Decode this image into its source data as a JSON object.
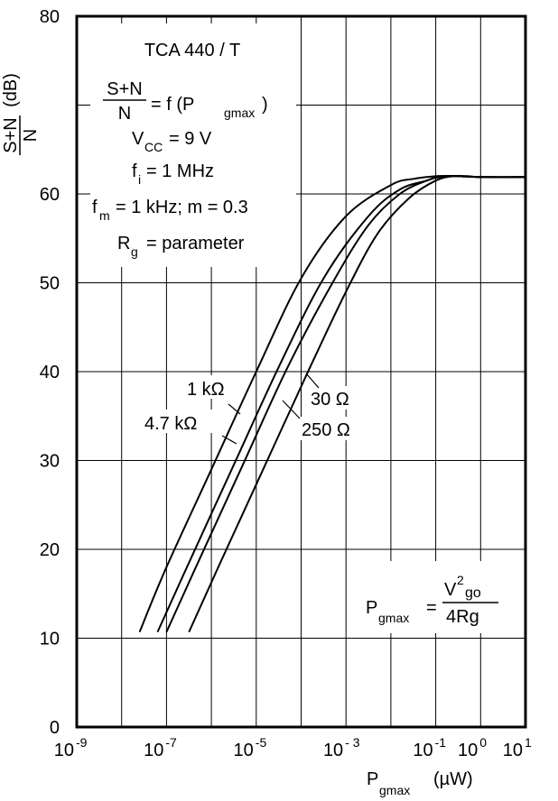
{
  "chart_data": {
    "type": "line",
    "x_scale": "log",
    "ylim": [
      0,
      80
    ],
    "xlim_exp": [
      -9,
      1
    ],
    "grid": true,
    "ylabel": {
      "num": "S+N",
      "den": "N",
      "unit": "(dB)"
    },
    "xlabel": {
      "main": "P",
      "sub": "gmax",
      "unit": "(µW)"
    },
    "y_ticks": [
      "0",
      "10",
      "20",
      "30",
      "40",
      "50",
      "60",
      "80"
    ],
    "x_ticks": [
      {
        "base": "10",
        "exp": "-9",
        "exp_value": -9
      },
      {
        "base": "10",
        "exp": "-7",
        "exp_value": -7
      },
      {
        "base": "10",
        "exp": "-5",
        "exp_value": -5
      },
      {
        "base": "10",
        "exp": "- 3",
        "exp_value": -3
      },
      {
        "base": "10",
        "exp": "-1",
        "exp_value": -1
      },
      {
        "base": "10",
        "exp": "0",
        "exp_value": 0
      },
      {
        "base": "10",
        "exp": "1",
        "exp_value": 1
      }
    ],
    "info_box": {
      "title": "TCA 440 / T",
      "formula": {
        "num": "S+N",
        "den": "N",
        "rest": "= f (P",
        "sub": "gmax",
        "close": ")"
      },
      "vcc": {
        "main": "V",
        "sub": "CC",
        "rest": "= 9 V"
      },
      "fi": {
        "main": "f",
        "sub": "i",
        "rest": "= 1 MHz"
      },
      "fm": {
        "main": "f",
        "sub": "m",
        "rest": "= 1 kHz; m = 0.3"
      },
      "rg": {
        "main": "R",
        "sub": "g",
        "rest": "= parameter"
      }
    },
    "pg_formula": {
      "lhs": "P",
      "lhs_sub": "gmax",
      "eq": "=",
      "num_main": "V",
      "num_sup": "2",
      "num_sub": "go",
      "den": "4Rg"
    },
    "series": [
      {
        "name": "1 kΩ",
        "x_exp": [
          -7.6,
          -7.0,
          -6.0,
          -5.0,
          -4.0,
          -3.0,
          -2.0,
          -1.5,
          -1.0,
          -0.8,
          -0.5,
          0.0,
          1.0
        ],
        "y": [
          10.7,
          18.0,
          29.0,
          40.0,
          50.5,
          57.5,
          61.0,
          61.7,
          62.0,
          62.0,
          62.0,
          61.9,
          61.9
        ]
      },
      {
        "name": "4.7 kΩ",
        "x_exp": [
          -7.2,
          -6.5,
          -5.5,
          -4.5,
          -3.5,
          -2.5,
          -1.8,
          -1.2,
          -0.9,
          -0.5,
          0.0,
          1.0
        ],
        "y": [
          10.7,
          18.5,
          29.5,
          40.5,
          50.5,
          57.5,
          60.5,
          61.5,
          62.0,
          62.0,
          61.9,
          61.9
        ]
      },
      {
        "name": "30 Ω",
        "x_exp": [
          -7.0,
          -6.3,
          -5.3,
          -4.3,
          -3.3,
          -2.5,
          -1.8,
          -1.2,
          -0.8,
          -0.5,
          0.0,
          1.0
        ],
        "y": [
          10.7,
          18.5,
          29.5,
          40.5,
          50.0,
          56.5,
          60.0,
          61.5,
          62.0,
          62.0,
          61.9,
          61.9
        ]
      },
      {
        "name": "250 Ω",
        "x_exp": [
          -6.5,
          -5.8,
          -4.8,
          -3.8,
          -3.0,
          -2.3,
          -1.6,
          -1.0,
          -0.6,
          -0.3,
          0.0,
          1.0
        ],
        "y": [
          10.7,
          18.5,
          29.5,
          40.5,
          49.0,
          55.5,
          59.5,
          61.5,
          62.0,
          62.0,
          61.9,
          61.9
        ]
      }
    ]
  }
}
